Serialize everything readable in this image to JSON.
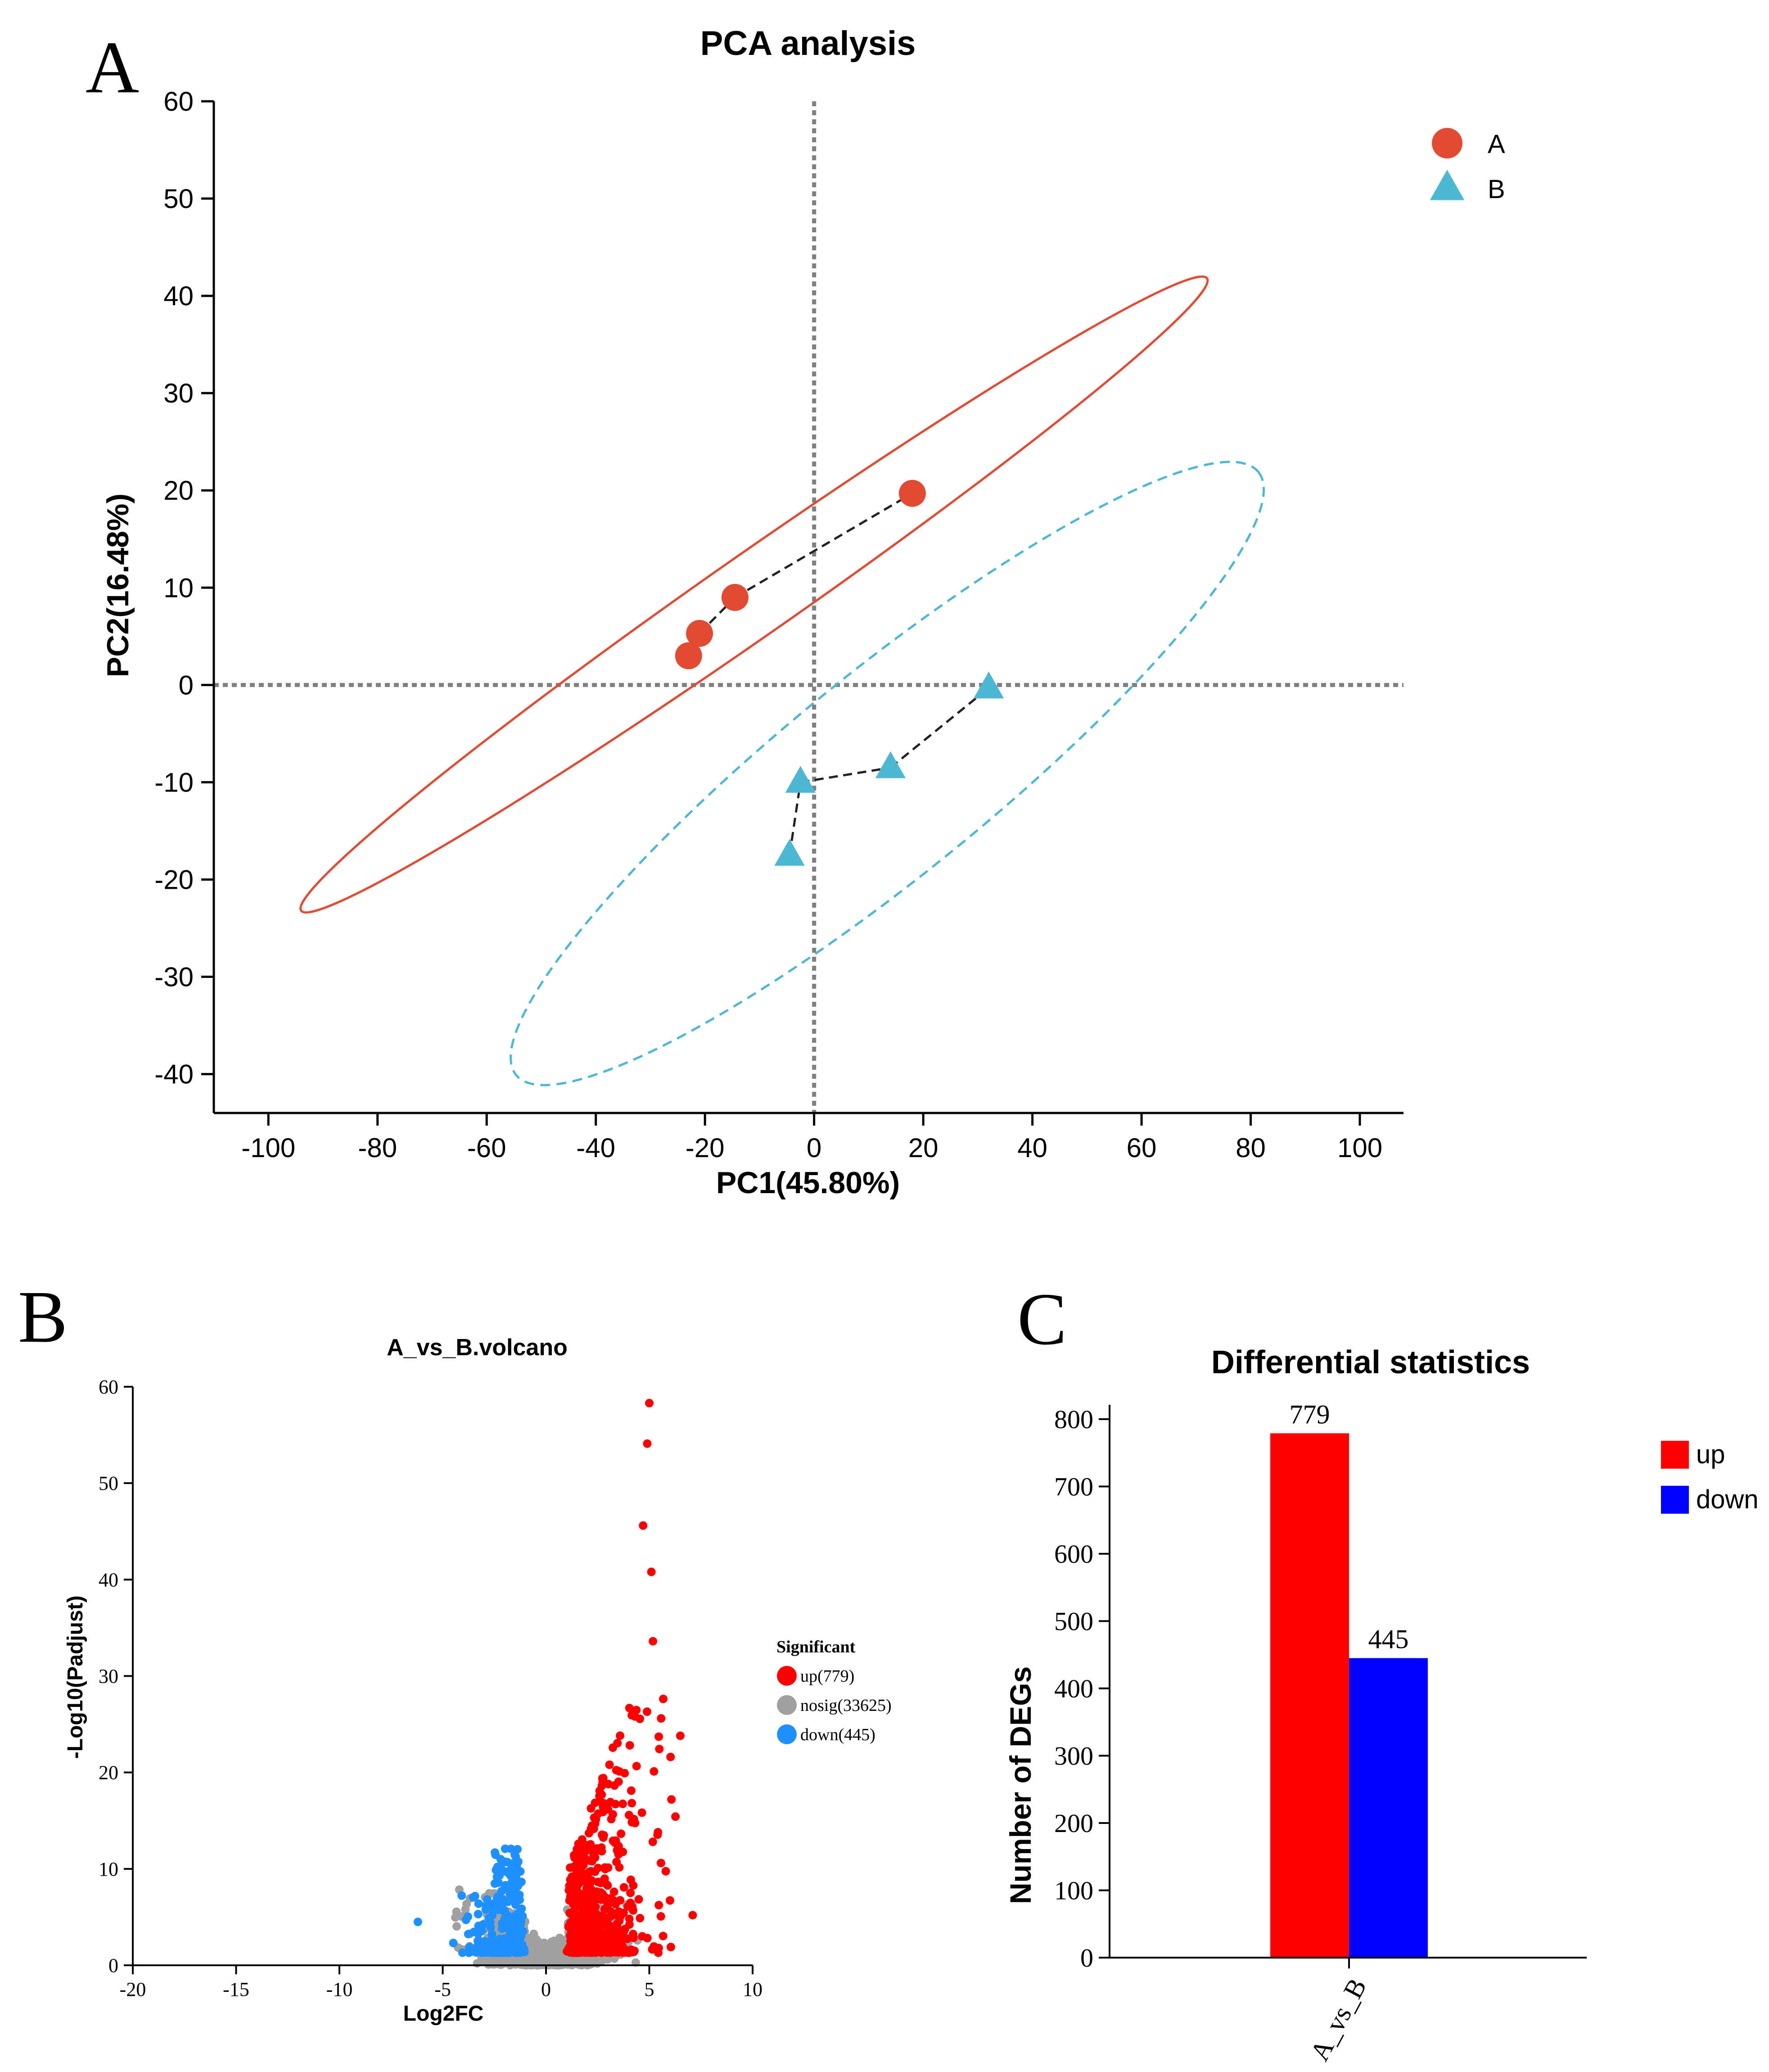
{
  "panels": {
    "a": "A",
    "b": "B",
    "c": "C"
  },
  "colors": {
    "groupA": "#e34a33",
    "groupB": "#4db8d4",
    "up": "#ff0000",
    "nosig": "#a0a0a0",
    "down": "#1e90ff",
    "barUp": "#ff0000",
    "barDown": "#0000ff"
  },
  "chart_data": [
    {
      "id": "pca",
      "type": "scatter",
      "title": "PCA analysis",
      "xlabel": "PC1(45.80%)",
      "ylabel": "PC2(16.48%)",
      "xlim": [
        -110,
        108
      ],
      "ylim": [
        -44,
        60
      ],
      "xticks": [
        -100,
        -80,
        -60,
        -40,
        -20,
        0,
        20,
        40,
        60,
        80,
        100
      ],
      "yticks": [
        -40,
        -30,
        -20,
        -10,
        0,
        10,
        20,
        30,
        40,
        50,
        60
      ],
      "legend_position": "top-right",
      "reference_lines": [
        0,
        0
      ],
      "series": [
        {
          "name": "A",
          "marker": "circle",
          "color": "#e34a33",
          "points": [
            [
              -23,
              3
            ],
            [
              -21,
              5.3
            ],
            [
              -14.5,
              9
            ],
            [
              18,
              19.7
            ]
          ],
          "ellipse": {
            "center": [
              -11,
              9.3
            ],
            "half_ends": [
              83,
              32.5
            ],
            "semi_minor": 4.2,
            "style": "solid"
          }
        },
        {
          "name": "B",
          "marker": "triangle",
          "color": "#4db8d4",
          "points": [
            [
              -4.5,
              -17.5
            ],
            [
              -2.5,
              -10
            ],
            [
              14,
              -8.5
            ],
            [
              32,
              -0.3
            ]
          ],
          "ellipse": {
            "center": [
              13.4,
              -9.1
            ],
            "half_ends": [
              68,
              31
            ],
            "semi_minor": 10.4,
            "style": "dashed"
          }
        }
      ]
    },
    {
      "id": "volcano",
      "type": "scatter",
      "title": "A_vs_B.volcano",
      "xlabel": "Log2FC",
      "ylabel": "-Log10(Padjust)",
      "xlim": [
        -20,
        10
      ],
      "ylim": [
        0,
        60
      ],
      "xticks": [
        -20,
        -15,
        -10,
        -5,
        0,
        5,
        10
      ],
      "yticks": [
        0,
        10,
        20,
        30,
        40,
        50,
        60
      ],
      "legend_title": "Significant",
      "legend": [
        {
          "label": "up(779)",
          "key": "up"
        },
        {
          "label": "nosig(33625)",
          "key": "nosig"
        },
        {
          "label": "down(445)",
          "key": "down"
        }
      ],
      "counts": {
        "up": 779,
        "nosig": 33625,
        "down": 445
      },
      "notable_points": [
        [
          5,
          58.3
        ],
        [
          4.9,
          54.1
        ],
        [
          4.7,
          45.6
        ],
        [
          5.1,
          40.8
        ],
        [
          6.5,
          23.8
        ],
        [
          -6.2,
          4.5
        ],
        [
          7.1,
          5.2
        ]
      ]
    },
    {
      "id": "deg",
      "type": "bar",
      "title": "Differential statistics",
      "categories": [
        "A_vs_B"
      ],
      "series": [
        {
          "name": "up",
          "values": [
            779
          ],
          "color": "#ff0000"
        },
        {
          "name": "down",
          "values": [
            445
          ],
          "color": "#0000ff"
        }
      ],
      "xlabel": "",
      "ylabel": "Number of DEGs",
      "ylim": [
        0,
        800
      ],
      "yticks": [
        0,
        100,
        200,
        300,
        400,
        500,
        600,
        700,
        800
      ],
      "data_labels": [
        "779",
        "445"
      ],
      "legend_position": "top-right"
    }
  ]
}
